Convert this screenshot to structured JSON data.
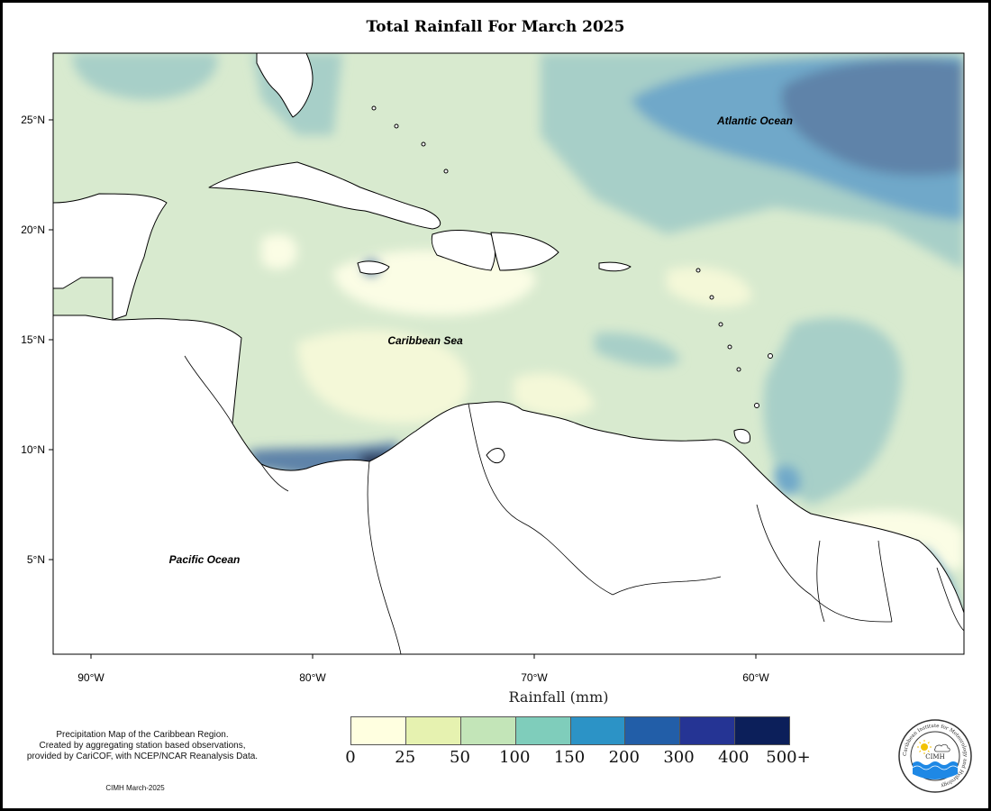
{
  "title": "Total Rainfall For March 2025",
  "axis_title": "Rainfall (mm)",
  "lat_labels": [
    {
      "lat": 25,
      "text": "25°N"
    },
    {
      "lat": 20,
      "text": "20°N"
    },
    {
      "lat": 15,
      "text": "15°N"
    },
    {
      "lat": 10,
      "text": "10°N"
    },
    {
      "lat": 5,
      "text": "5°N"
    }
  ],
  "lon_labels": [
    {
      "lon": -90,
      "text": "90°W"
    },
    {
      "lon": -80,
      "text": "80°W"
    },
    {
      "lon": -70,
      "text": "70°W"
    },
    {
      "lon": -60,
      "text": "60°W"
    }
  ],
  "region_labels": {
    "atlantic": "Atlantic Ocean",
    "caribbean": "Caribbean Sea",
    "pacific": "Pacific Ocean"
  },
  "legend": {
    "bins": [
      {
        "label": "0",
        "color": "#ffffe0"
      },
      {
        "label": "25",
        "color": "#e6f2b0"
      },
      {
        "label": "50",
        "color": "#c3e5b8"
      },
      {
        "label": "100",
        "color": "#7fcdbb"
      },
      {
        "label": "150",
        "color": "#2c93c6"
      },
      {
        "label": "200",
        "color": "#225ea8"
      },
      {
        "label": "300",
        "color": "#253494"
      },
      {
        "label": "400",
        "color": "#0c1f5a"
      }
    ],
    "last_label": "500+"
  },
  "description": "Precipitation Map of the Caribbean Region.\nCreated by aggregating station based observations,\nprovided by CariCOF, with NCEP/NCAR Reanalysis Data.",
  "credit": "CIMH March-2025",
  "logo": {
    "text": "CIMH",
    "ring_text": "Caribbean Institute for Meteorology and Hydrology",
    "icon": "sun-cloud-waves-icon"
  }
}
